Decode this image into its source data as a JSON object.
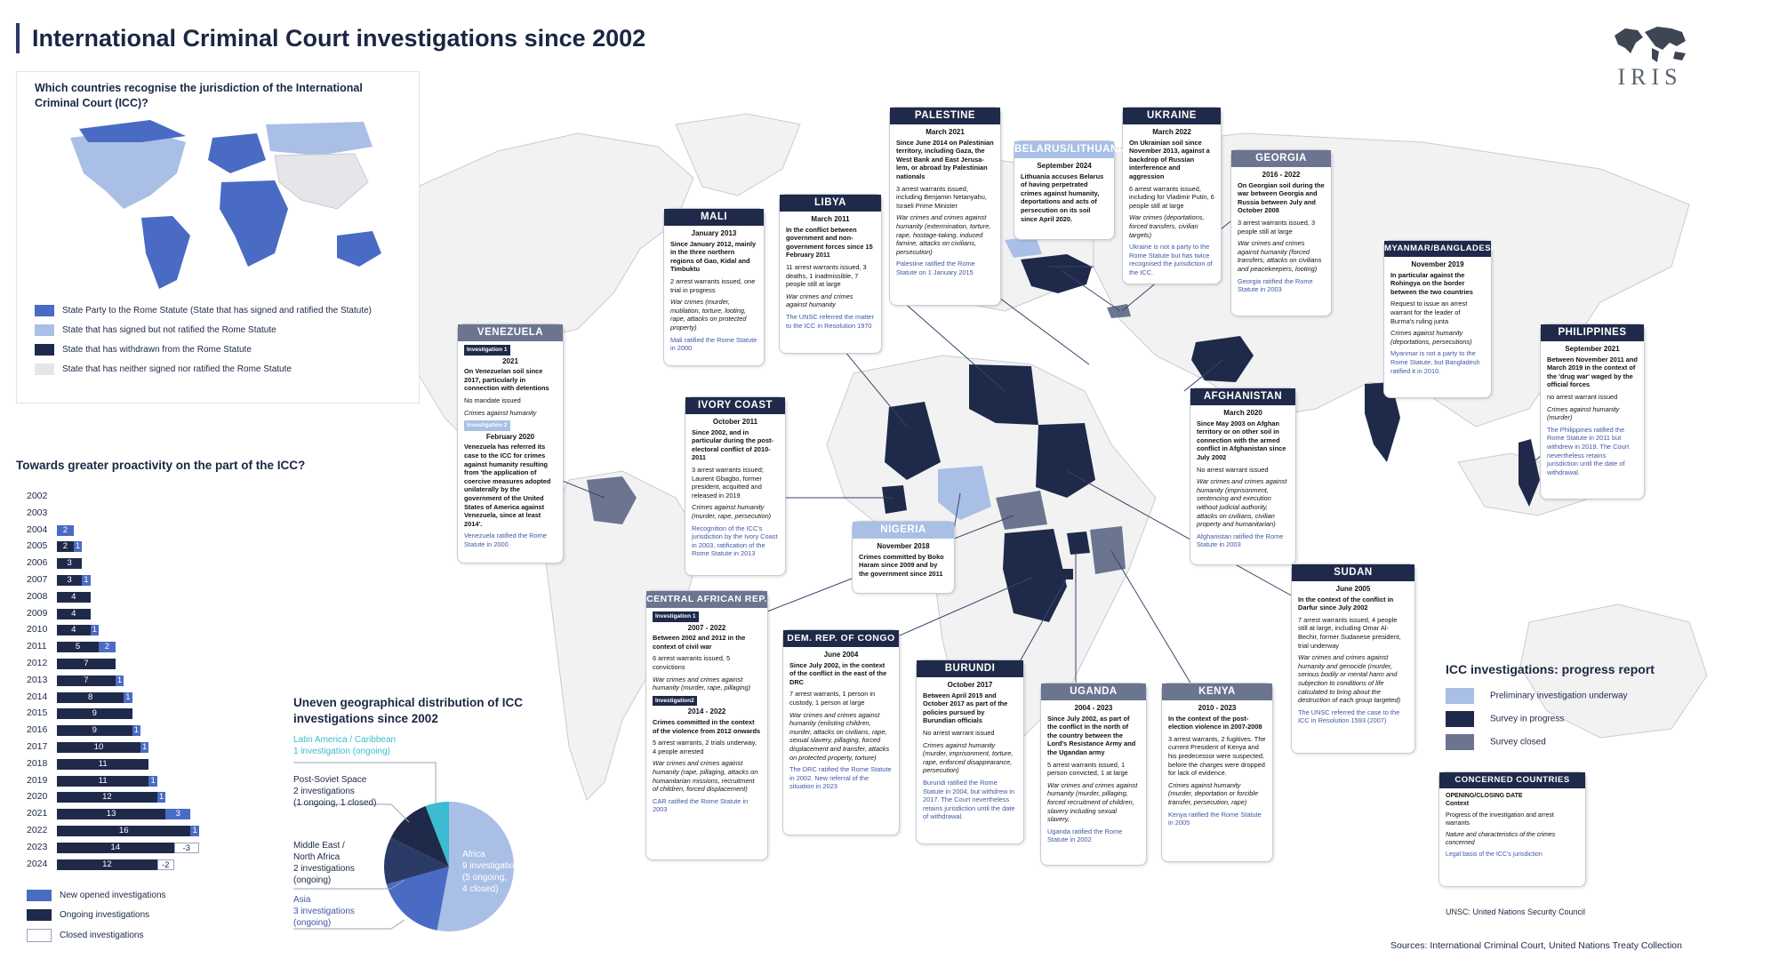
{
  "title": "International Criminal Court investigations since 2002",
  "logo_text": "IRIS",
  "inset_map": {
    "title": "Which countries recognise the jurisdiction of the International Criminal Court (ICC)?",
    "legend": [
      {
        "label": "State Party to the Rome Statute (State that has signed and ratified the Statute)",
        "color": "#4a6bc4"
      },
      {
        "label": "State that has signed but not ratified the Rome Statute",
        "color": "#a9bfe6"
      },
      {
        "label": "State that has withdrawn from the Rome Statute",
        "color": "#1f2a4a"
      },
      {
        "label": "State that has neither signed nor ratified the Rome Statute",
        "color": "#e4e6ea"
      }
    ]
  },
  "countries": {
    "palestine": {
      "name": "PALESTINE",
      "date": "March 2021",
      "context": "Since June 2014 on Palestinian territory, including Gaza, the West Bank and East Jerusa-lem, or abroad by Palestinian nationals",
      "progress": "3 arrest warrants issued, including Benjamin Netanyahu, Israeli Prime Minister",
      "nature": "War crimes and crimes against humanity (extermination, torture, rape, hostage-taking, induced famine, attacks on civilians, persecution)",
      "legal": "Palestine ratified the Rome Statute on 1 January 2015"
    },
    "ukraine": {
      "name": "UKRAINE",
      "date": "March 2022",
      "context": "On Ukrainian soil since November 2013, against a backdrop of Russian interference and aggression",
      "progress": "6 arrest warrants issued, including for Vladimir Putin, 6 people still at large",
      "nature": "War crimes (deportations, forced transfers, civilian targets)",
      "legal": "Ukraine is not a party to the Rome Statute but has twice recognised the jurisdiction of the ICC."
    },
    "belarus": {
      "name": "BELARUS/LITHUANIA",
      "date": "September 2024",
      "context": "Lithuania accuses Belarus of having perpetrated crimes against humanity, deportations and acts of persecution on its soil since April 2020."
    },
    "georgia": {
      "name": "GEORGIA",
      "date": "2016 - 2022",
      "context": "On Georgian soil during the war between Georgia and Russia between July and October 2008",
      "progress": "3 arrest warrants issued, 3 people still at large",
      "nature": "War crimes and crimes against humanity (forced transfers, attacks on civilians and peacekeepers, looting)",
      "legal": "Georgia ratified the Rome Statute in 2003"
    },
    "mali": {
      "name": "MALI",
      "date": "January 2013",
      "context": "Since January 2012, mainly in the three northern regions of Gao, Kidal and Timbuktu",
      "progress": "2 arrest warrants issued, one trial in progress",
      "nature": "War crimes (murder, mutilation, torture, looting, rape, attacks on protected property)",
      "legal": "Mali ratified the Rome Statute in 2000"
    },
    "libya": {
      "name": "LIBYA",
      "date": "March 2011",
      "context": "In the conflict between government and non-government forces since 15 February 2011",
      "progress": "11 arrest warrants issued, 3 deaths, 1 inadmissible, 7 people still at large",
      "nature": "War crimes and crimes against humanity",
      "legal": "The UNSC referred the matter to the ICC in Resolution 1970"
    },
    "myanmar": {
      "name": "MYANMAR/BANGLADESH",
      "date": "November 2019",
      "context": "In particular against the Rohingya on the border between the two countries",
      "progress": "Request to issue an arrest warrant for the leader of Burma's ruling junta",
      "nature": "Crimes against humanity (deportations, persecutions)",
      "legal": "Myanmar is not a party to the Rome Statute, but Bangladesh ratified it in 2010."
    },
    "venezuela": {
      "name": "VENEZUELA",
      "tag1": "Investigation 1",
      "date1": "2021",
      "context1": "On Venezuelan soil since 2017, particularly in connection with detentions",
      "progress1": "No mandate issued",
      "nature1": "Crimes against humanity",
      "tag2": "Investigation 2",
      "date2": "February 2020",
      "context2": "Venezuela has referred its case to the ICC for crimes against humanity resulting from 'the application of coercive measures adopted unilaterally by the government of the United States of America against Venezuela, since at least 2014'.",
      "legal": "Venezuela ratified the Rome Statute in 2000"
    },
    "ivory_coast": {
      "name": "IVORY COAST",
      "date": "October 2011",
      "context": "Since 2002, and in particular during the post-electoral conflict of 2010-2011",
      "progress": "3 arrest warrants issued; Laurent Gbagbo, former president, acquitted and released in 2019",
      "nature": "Crimes against humanity (murder, rape, persecution)",
      "legal": "Recognition of the ICC's jurisdiction by the Ivory Coast in 2003, ratification of the Rome Statute in 2013"
    },
    "nigeria": {
      "name": "NIGERIA",
      "date": "November 2018",
      "context": "Crimes committed by Boko Haram since 2009 and by the government since 2011"
    },
    "afghanistan": {
      "name": "AFGHANISTAN",
      "date": "March 2020",
      "context": "Since May 2003 on Afghan territory or on other soil in connection with the armed conflict in Afghanistan since July 2002",
      "progress": "No arrest warrant issued",
      "nature": "War crimes and crimes against humanity (imprisonment, sentencing and execution without judicial authority, attacks on civilians, civilian property and humanitarian)",
      "legal": "Afghanistan ratified the Rome Statute in 2003"
    },
    "philippines": {
      "name": "PHILIPPINES",
      "date": "September 2021",
      "context": "Between November 2011 and March 2019 in the context of the 'drug war' waged by the official forces",
      "progress": "no arrest warrant issued",
      "nature": "Crimes against humanity (murder)",
      "legal": "The Philippines ratified the Rome Statute in 2011 but withdrew in 2019. The Court nevertheless retains jurisdiction until the date of withdrawal."
    },
    "car": {
      "name": "CENTRAL AFRICAN REP.",
      "tag1": "Investigation 1",
      "date1": "2007 - 2022",
      "context1": "Between 2002 and 2012 in the context of civil war",
      "progress1": "6 arrest warrants issued, 5 convictions",
      "nature1": "War crimes and crimes against humanity (murder, rape, pillaging)",
      "tag2": "Investigation2",
      "date2": "2014 - 2022",
      "context2": "Crimes committed in the context of the violence from 2012 onwards",
      "progress2": "5 arrest warrants, 2 trials underway, 4 people arrested",
      "nature2": "War crimes and crimes against humanity (rape, pillaging, attacks on humanitarian missions, recruitment of children, forced displacement)",
      "legal": "CAR ratified the Rome Statute in 2003"
    },
    "drc": {
      "name": "DEM. REP. OF CONGO",
      "date": "June 2004",
      "context": "Since July 2002, in the context of the conflict in the east of the DRC",
      "progress": "7 arrest warrants, 1 person in custody, 1 person at large",
      "nature": "War crimes and crimes against humanity (enlisting children, murder, attacks on civilians, rape, sexual slavery, pillaging, forced displacement and transfer, attacks on protected property, torture)",
      "legal": "The DRC ratified the Rome Statute in 2002. New referral of the situation in 2023"
    },
    "burundi": {
      "name": "BURUNDI",
      "date": "October 2017",
      "context": "Between April 2015 and October 2017 as part of the policies pursued by Burundian officials",
      "progress": "No arrest warrant issued",
      "nature": "Crimes against humanity (murder, imprisonment, torture, rape, enforced disappearance, persecution)",
      "legal": "Burundi ratified the Rome Statute in 2004, but withdrew in 2017. The Court nevertheless retains jurisdiction until the date of withdrawal."
    },
    "uganda": {
      "name": "UGANDA",
      "date": "2004 - 2023",
      "context": "Since July 2002, as part of the conflict in the north of the country between the Lord's Resistance Army and the Ugandan army",
      "progress": "5 arrest warrants issued, 1 person convicted, 1 at large",
      "nature": "War crimes and crimes against humanity (murder, pillaging, forced recruitment of children, slavery including sexual slavery,",
      "legal": "Uganda ratified the Rome Statute in 2002"
    },
    "kenya": {
      "name": "KENYA",
      "date": "2010 - 2023",
      "context": "In the context of the post-election violence in 2007-2008",
      "progress": "3 arrest warrants, 2 fugitives. The current President of Kenya and his predecessor were suspected, before the charges were dropped for lack of evidence.",
      "nature": "Crimes against humanity (murder, deportation or forcible transfer, persecution, rape)",
      "legal": "Kenya ratified the Rome Statute in 2005"
    },
    "sudan": {
      "name": "SUDAN",
      "date": "June 2005",
      "context": "In the context of the conflict in Darfur since July 2002",
      "progress": "7 arrest warrants issued, 4 people still at large, including Omar Al-Bechir, former Sudanese president, trial underway",
      "nature": "War crimes and crimes against humanity and genocide (murder, serious bodily or mental harm and subjection to conditions of life calculated to bring about the destruction of each group targeted)",
      "legal": "The UNSC referred the case to the ICC in Resolution 1593 (2007)"
    }
  },
  "progress_chart": {
    "title": "Towards greater proactivity on the part of the ICC?",
    "legend": {
      "new": "New opened investigations",
      "ongoing": "Ongoing investigations",
      "closed": "Closed investigations"
    },
    "rows": [
      {
        "year": "2002",
        "ongoing": 0,
        "new": 0,
        "closed": 0
      },
      {
        "year": "2003",
        "ongoing": 0,
        "new": 0,
        "closed": 0
      },
      {
        "year": "2004",
        "ongoing": 0,
        "new": 2,
        "closed": 0
      },
      {
        "year": "2005",
        "ongoing": 2,
        "new": 1,
        "closed": 0
      },
      {
        "year": "2006",
        "ongoing": 3,
        "new": 0,
        "closed": 0
      },
      {
        "year": "2007",
        "ongoing": 3,
        "new": 1,
        "closed": 0
      },
      {
        "year": "2008",
        "ongoing": 4,
        "new": 0,
        "closed": 0
      },
      {
        "year": "2009",
        "ongoing": 4,
        "new": 0,
        "closed": 0
      },
      {
        "year": "2010",
        "ongoing": 4,
        "new": 1,
        "closed": 0
      },
      {
        "year": "2011",
        "ongoing": 5,
        "new": 2,
        "closed": 0
      },
      {
        "year": "2012",
        "ongoing": 7,
        "new": 0,
        "closed": 0
      },
      {
        "year": "2013",
        "ongoing": 7,
        "new": 1,
        "closed": 0
      },
      {
        "year": "2014",
        "ongoing": 8,
        "new": 1,
        "closed": 0
      },
      {
        "year": "2015",
        "ongoing": 9,
        "new": 0,
        "closed": 0
      },
      {
        "year": "2016",
        "ongoing": 9,
        "new": 1,
        "closed": 0
      },
      {
        "year": "2017",
        "ongoing": 10,
        "new": 1,
        "closed": 0
      },
      {
        "year": "2018",
        "ongoing": 11,
        "new": 0,
        "closed": 0
      },
      {
        "year": "2019",
        "ongoing": 11,
        "new": 1,
        "closed": 0
      },
      {
        "year": "2020",
        "ongoing": 12,
        "new": 1,
        "closed": 0
      },
      {
        "year": "2021",
        "ongoing": 13,
        "new": 3,
        "closed": 0
      },
      {
        "year": "2022",
        "ongoing": 16,
        "new": 1,
        "closed": 0
      },
      {
        "year": "2023",
        "ongoing": 14,
        "new": 0,
        "closed": -3
      },
      {
        "year": "2024",
        "ongoing": 12,
        "new": 0,
        "closed": -2
      }
    ]
  },
  "chart_data": [
    {
      "type": "bar",
      "title": "Towards greater proactivity on the part of the ICC?",
      "categories": [
        "2002",
        "2003",
        "2004",
        "2005",
        "2006",
        "2007",
        "2008",
        "2009",
        "2010",
        "2011",
        "2012",
        "2013",
        "2014",
        "2015",
        "2016",
        "2017",
        "2018",
        "2019",
        "2020",
        "2021",
        "2022",
        "2023",
        "2024"
      ],
      "series": [
        {
          "name": "Ongoing investigations",
          "values": [
            0,
            0,
            0,
            2,
            3,
            3,
            4,
            4,
            4,
            5,
            7,
            7,
            8,
            9,
            9,
            10,
            11,
            11,
            12,
            13,
            16,
            14,
            12
          ]
        },
        {
          "name": "New opened investigations",
          "values": [
            0,
            0,
            2,
            1,
            0,
            1,
            0,
            0,
            1,
            2,
            0,
            1,
            1,
            0,
            1,
            1,
            0,
            1,
            1,
            3,
            1,
            0,
            0
          ]
        },
        {
          "name": "Closed investigations",
          "values": [
            0,
            0,
            0,
            0,
            0,
            0,
            0,
            0,
            0,
            0,
            0,
            0,
            0,
            0,
            0,
            0,
            0,
            0,
            0,
            0,
            0,
            -3,
            -2
          ]
        }
      ]
    },
    {
      "type": "pie",
      "title": "Uneven geographical distribution of ICC investigations since 2002",
      "categories": [
        "Africa",
        "Asia",
        "Middle East / North Africa",
        "Post-Soviet Space",
        "Latin America / Caribbean"
      ],
      "values": [
        9,
        3,
        2,
        2,
        1
      ]
    }
  ],
  "pie": {
    "title": "Uneven geographical distribution of ICC investigations since 2002",
    "slices": [
      {
        "name": "Africa",
        "value": 9,
        "color": "#a9bfe6"
      },
      {
        "name": "Asia",
        "value": 3,
        "color": "#4a6bc4"
      },
      {
        "name": "Middle East / North Africa",
        "value": 2,
        "color": "#2b3a67"
      },
      {
        "name": "Post-Soviet Space",
        "value": 2,
        "color": "#1f2a4a"
      },
      {
        "name": "Latin America / Caribbean",
        "value": 1,
        "color": "#3bbcd0"
      }
    ],
    "labels": {
      "latam": [
        "Latin America / Caribbean",
        "1 investigation (ongoing)"
      ],
      "postsoviet": [
        "Post-Soviet Space",
        "2 investigations",
        "(1 ongoing, 1 closed)"
      ],
      "mena": [
        "Middle East /",
        "North Africa",
        "2 investigations",
        "(ongoing)"
      ],
      "asia": [
        "Asia",
        "3 investigations",
        "(ongoing)"
      ],
      "africa": [
        "Africa",
        "9 investigations",
        "(5 ongoing,",
        "4 closed)"
      ]
    }
  },
  "progress_legend": {
    "title": "ICC investigations: progress report",
    "items": [
      {
        "label": "Preliminary investigation underway",
        "color": "#a9bfe6"
      },
      {
        "label": "Survey in progress",
        "color": "#1f2a4a"
      },
      {
        "label": "Survey closed",
        "color": "#6b7590"
      }
    ]
  },
  "concerned_legend": {
    "title": "CONCERNED COUNTRIES",
    "date": "OPENING/CLOSING DATE",
    "context": "Context",
    "progress": "Progress of the investigation and arrest warrants",
    "nature": "Nature and characteristics of the crimes concerned",
    "legal": "Legal basis of the ICC's jurisdiction"
  },
  "unsc_note": "UNSC: United Nations Security Council",
  "sources": "Sources: International Criminal Court, United Nations Treaty Collection"
}
